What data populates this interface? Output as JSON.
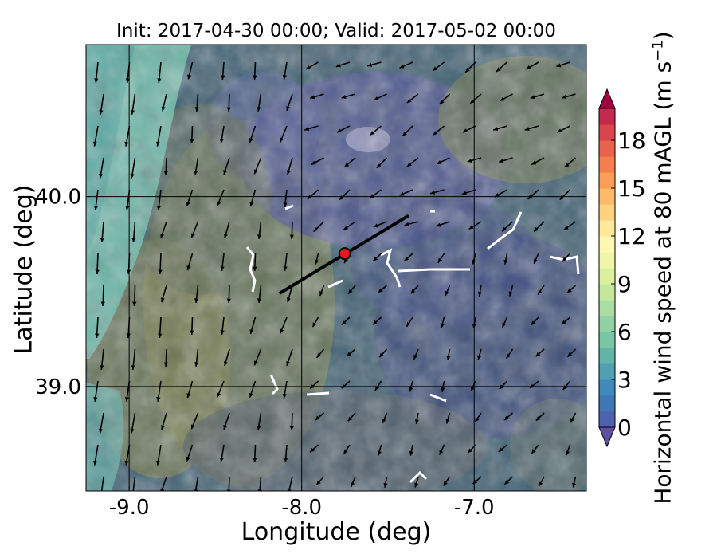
{
  "figure": {
    "title": "Init: 2017-04-30 00:00; Valid: 2017-05-02 00:00",
    "xlabel": "Longitude (deg)",
    "ylabel": "Latitude (deg)",
    "colorbar_label_main": "Horizontal wind speed at 80 mAGL (m s",
    "colorbar_label_exp": "−1",
    "colorbar_label_close": ")"
  },
  "chart_data": {
    "type": "heatmap",
    "subtype": "filled-contour map with wind vectors",
    "title": "Init: 2017-04-30 00:00; Valid: 2017-05-02 00:00",
    "xlabel": "Longitude (deg)",
    "ylabel": "Latitude (deg)",
    "xlim": [
      -9.25,
      -6.35
    ],
    "ylim": [
      38.45,
      40.8
    ],
    "xticks": [
      -9.0,
      -8.0,
      -7.0
    ],
    "xtick_labels": [
      "-9.0",
      "-8.0",
      "-7.0"
    ],
    "yticks": [
      39.0,
      40.0
    ],
    "ytick_labels": [
      "39.0",
      "40.0"
    ],
    "grid": true,
    "transect_line": {
      "start": [
        -8.13,
        39.49
      ],
      "end": [
        -7.38,
        39.9
      ]
    },
    "site_marker": {
      "lon": -7.75,
      "lat": 39.7,
      "color": "#e8161e"
    },
    "colorbar": {
      "label": "Horizontal wind speed at 80 mAGL (m s−1)",
      "min": 0,
      "max": 20,
      "step": 1,
      "ticks": [
        0,
        3,
        6,
        9,
        12,
        15,
        18
      ],
      "tick_labels": [
        "0",
        "3",
        "6",
        "9",
        "12",
        "15",
        "18"
      ],
      "extend": "both",
      "colormap": "Spectral_r",
      "colors": [
        "#5e4fa2",
        "#4e62ac",
        "#3f76b4",
        "#3e8aba",
        "#4fa0b2",
        "#62b4a8",
        "#79c6a5",
        "#92d1a4",
        "#abdca3",
        "#c4e79e",
        "#dbf09d",
        "#eef7a9",
        "#fdf7b2",
        "#fee89a",
        "#fed280",
        "#fdba6b",
        "#fb9d59",
        "#f57f4c",
        "#e8634d",
        "#d8454e",
        "#c42a4e",
        "#9e0142"
      ]
    }
  }
}
